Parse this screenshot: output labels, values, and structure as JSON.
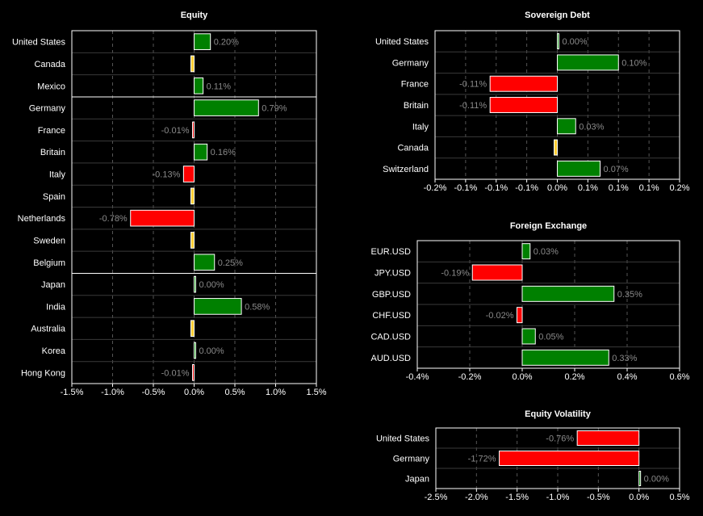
{
  "colors": {
    "positive": "#008000",
    "negative": "#ff0000",
    "neutral": "#ffcc33",
    "bar_stroke": "#ffffff",
    "background": "#000000",
    "label_grey": "#8a8a8a"
  },
  "chart_data": [
    {
      "id": "equity",
      "type": "bar",
      "orientation": "horizontal",
      "title": "Equity",
      "categories": [
        "United States",
        "Canada",
        "Mexico",
        "Germany",
        "France",
        "Britain",
        "Italy",
        "Spain",
        "Netherlands",
        "Sweden",
        "Belgium",
        "Japan",
        "India",
        "Australia",
        "Korea",
        "Hong Kong"
      ],
      "values": [
        0.2,
        0.0,
        0.11,
        0.79,
        -0.01,
        0.16,
        -0.13,
        0.0,
        -0.78,
        0.0,
        0.25,
        0.0,
        0.58,
        0.0,
        0.0,
        -0.01
      ],
      "labels": [
        "0.20%",
        "",
        "0.11%",
        "0.79%",
        "-0.01%",
        "0.16%",
        "-0.13%",
        "",
        "-0.78%",
        "",
        "0.25%",
        "0.00%",
        "0.58%",
        "",
        "0.00%",
        "-0.01%"
      ],
      "xlim": [
        -1.5,
        1.5
      ],
      "ticks": [
        -1.5,
        -1.0,
        -0.5,
        0.0,
        0.5,
        1.0,
        1.5
      ],
      "tick_labels": [
        "-1.5%",
        "-1.0%",
        "-0.5%",
        "0.0%",
        "0.5%",
        "1.0%",
        "1.5%"
      ],
      "group_breaks_after": [
        2,
        10
      ],
      "grid": true
    },
    {
      "id": "sovereign",
      "type": "bar",
      "orientation": "horizontal",
      "title": "Sovereign Debt",
      "categories": [
        "United States",
        "Germany",
        "France",
        "Britain",
        "Italy",
        "Canada",
        "Switzerland"
      ],
      "values": [
        0.0,
        0.1,
        -0.11,
        -0.11,
        0.03,
        0.0,
        0.07
      ],
      "labels": [
        "0.00%",
        "0.10%",
        "-0.11%",
        "-0.11%",
        "0.03%",
        "",
        "0.07%"
      ],
      "xlim": [
        -0.2,
        0.2
      ],
      "ticks": [
        -0.2,
        -0.15,
        -0.1,
        -0.05,
        0.0,
        0.05,
        0.1,
        0.15,
        0.2
      ],
      "tick_labels": [
        "-0.2%",
        "-0.1%",
        "-0.1%",
        "-0.1%",
        "0.0%",
        "0.1%",
        "0.1%",
        "0.1%",
        "0.2%"
      ],
      "group_breaks_after": [],
      "grid": true
    },
    {
      "id": "fx",
      "type": "bar",
      "orientation": "horizontal",
      "title": "Foreign Exchange",
      "categories": [
        "EUR.USD",
        "JPY.USD",
        "GBP.USD",
        "CHF.USD",
        "CAD.USD",
        "AUD.USD"
      ],
      "values": [
        0.03,
        -0.19,
        0.35,
        -0.02,
        0.05,
        0.33
      ],
      "labels": [
        "0.03%",
        "-0.19%",
        "0.35%",
        "-0.02%",
        "0.05%",
        "0.33%"
      ],
      "xlim": [
        -0.4,
        0.6
      ],
      "ticks": [
        -0.4,
        -0.2,
        0.0,
        0.2,
        0.4,
        0.6
      ],
      "tick_labels": [
        "-0.4%",
        "-0.2%",
        "0.0%",
        "0.2%",
        "0.4%",
        "0.6%"
      ],
      "group_breaks_after": [],
      "grid": true
    },
    {
      "id": "vol",
      "type": "bar",
      "orientation": "horizontal",
      "title": "Equity Volatility",
      "categories": [
        "United States",
        "Germany",
        "Japan"
      ],
      "values": [
        -0.76,
        -1.72,
        0.0
      ],
      "labels": [
        "-0.76%",
        "-1.72%",
        "0.00%"
      ],
      "xlim": [
        -2.5,
        0.5
      ],
      "ticks": [
        -2.5,
        -2.0,
        -1.5,
        -1.0,
        -0.5,
        0.0,
        0.5
      ],
      "tick_labels": [
        "-2.5%",
        "-2.0%",
        "-1.5%",
        "-1.0%",
        "-0.5%",
        "0.0%",
        "0.5%"
      ],
      "group_breaks_after": [],
      "grid": true
    }
  ]
}
